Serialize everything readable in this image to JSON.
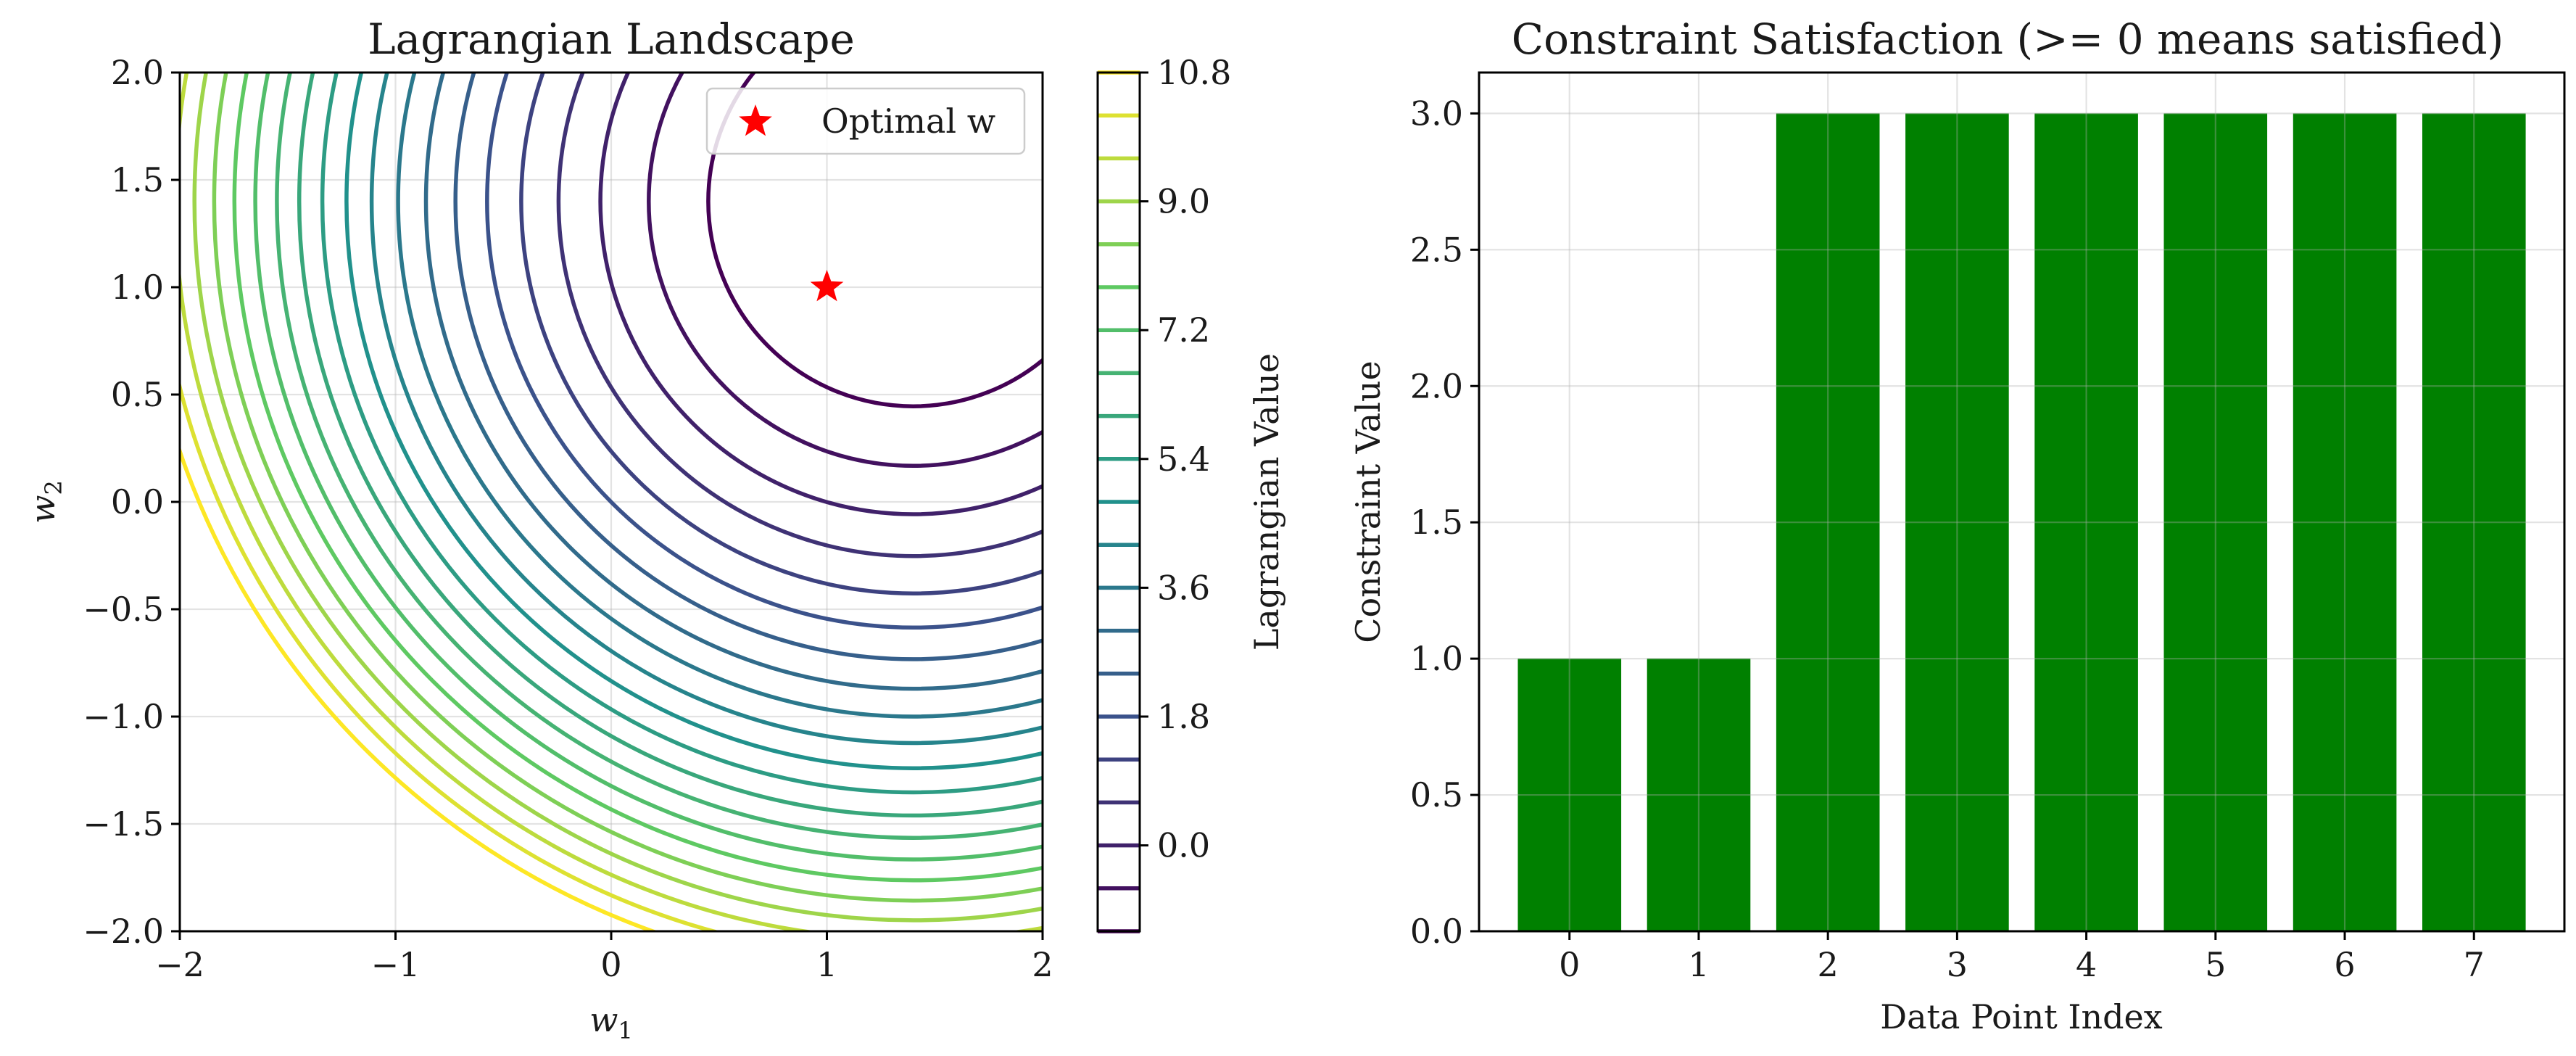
{
  "chart_data": [
    {
      "type": "contour",
      "title": "Lagrangian Landscape",
      "xlabel_base": "w",
      "xlabel_sub": "1",
      "ylabel_base": "w",
      "ylabel_sub": "2",
      "xlim": [
        -2,
        2
      ],
      "ylim": [
        -2,
        2
      ],
      "xticks": [
        -2,
        -1,
        0,
        1,
        2
      ],
      "xtick_labels": [
        "−2",
        "−1",
        "0",
        "1",
        "2"
      ],
      "yticks": [
        2.0,
        1.5,
        1.0,
        0.5,
        0.0,
        -0.5,
        -1.0,
        -1.5,
        -2.0
      ],
      "ytick_labels": [
        "2.0",
        "1.5",
        "1.0",
        "0.5",
        "0.0",
        "−0.5",
        "−1.0",
        "−1.5",
        "−2.0"
      ],
      "grid": true,
      "colormap": "viridis",
      "contour_center": [
        1.4,
        1.4
      ],
      "contour_levels": [
        -1.2,
        -0.6,
        0.0,
        0.6,
        1.2,
        1.8,
        2.4,
        3.0,
        3.6,
        4.2,
        4.8,
        5.4,
        6.0,
        6.6,
        7.2,
        7.8,
        8.4,
        9.0,
        9.6,
        10.2,
        10.8
      ],
      "optimal_point": {
        "x": 1.0,
        "y": 1.0,
        "color": "#ff0000"
      },
      "legend": {
        "label": "Optimal w",
        "placement": "upper right"
      },
      "colorbar": {
        "label": "Lagrangian Value",
        "range": [
          -1.2,
          10.8
        ],
        "ticks": [
          0.0,
          1.8,
          3.6,
          5.4,
          7.2,
          9.0,
          10.8
        ],
        "tick_labels": [
          "0.0",
          "1.8",
          "3.6",
          "5.4",
          "7.2",
          "9.0",
          "10.8"
        ]
      }
    },
    {
      "type": "bar",
      "title": "Constraint Satisfaction (>= 0 means satisfied)",
      "xlabel": "Data Point Index",
      "ylabel": "Constraint Value",
      "categories": [
        "0",
        "1",
        "2",
        "3",
        "4",
        "5",
        "6",
        "7"
      ],
      "values": [
        1.0,
        1.0,
        3.0,
        3.0,
        3.0,
        3.0,
        3.0,
        3.0
      ],
      "bar_color": "#008000",
      "ylim": [
        0,
        3.15
      ],
      "yticks": [
        0.0,
        0.5,
        1.0,
        1.5,
        2.0,
        2.5,
        3.0
      ],
      "ytick_labels": [
        "0.0",
        "0.5",
        "1.0",
        "1.5",
        "2.0",
        "2.5",
        "3.0"
      ],
      "grid": true
    }
  ]
}
